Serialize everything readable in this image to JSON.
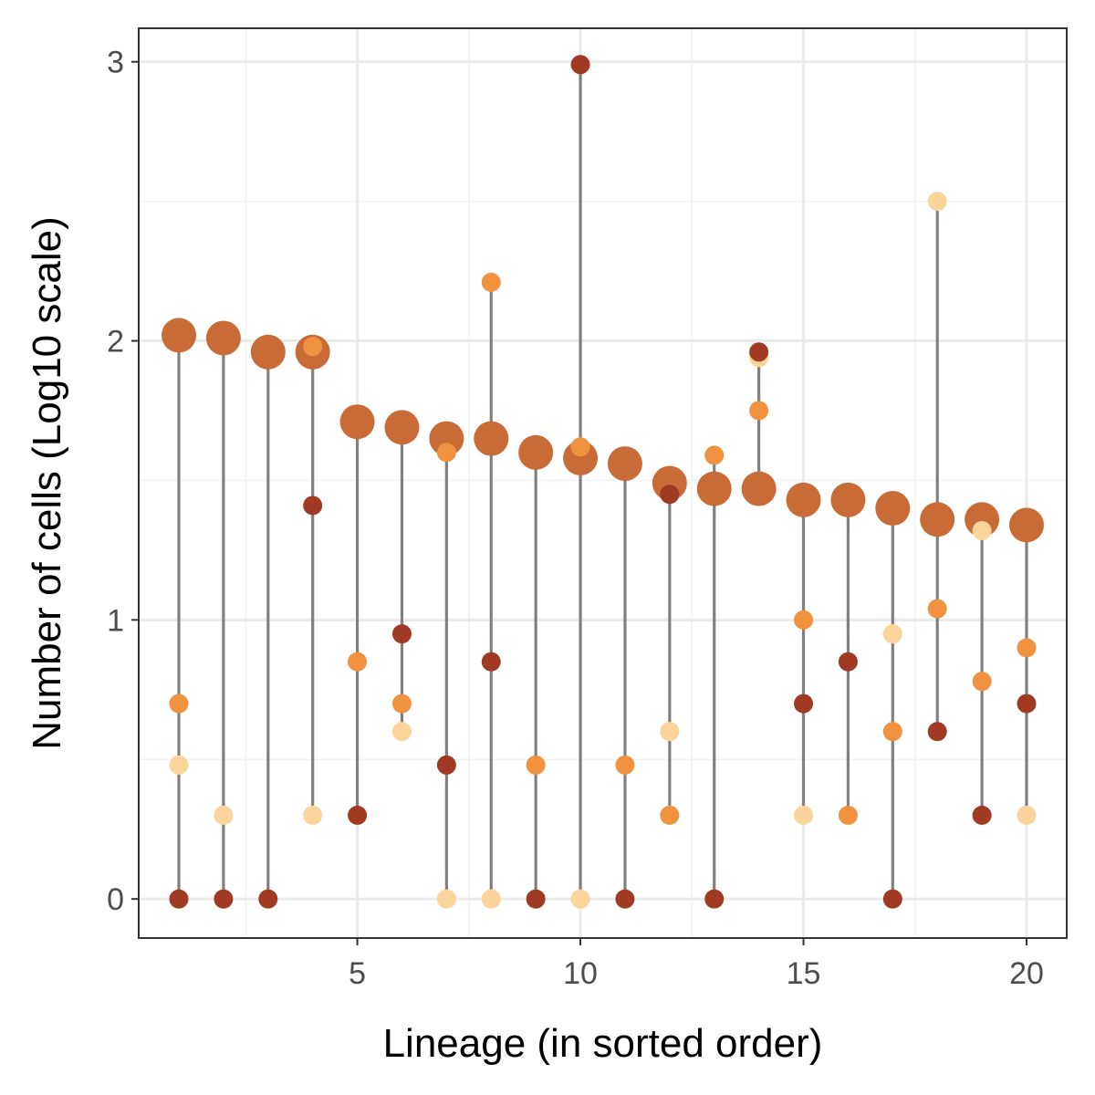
{
  "chart_data": {
    "type": "scatter",
    "xlabel": "Lineage (in sorted order)",
    "ylabel": "Number of cells (Log10 scale)",
    "xlim": [
      0.1,
      20.9
    ],
    "ylim": [
      -0.14,
      3.12
    ],
    "x_ticks": [
      5,
      10,
      15,
      20
    ],
    "y_ticks": [
      0,
      1,
      2,
      3
    ],
    "grid": true,
    "legend": "none",
    "colors": {
      "total": "#C96B36",
      "dark": "#A03A22",
      "medium": "#F0923F",
      "light": "#FAD49B",
      "segment": "#808080",
      "panel_border": "#333333",
      "grid_major": "#EBEBEB",
      "grid_minor": "#F2F2F2"
    },
    "series": [
      {
        "key": "total",
        "x": [
          1,
          2,
          3,
          4,
          5,
          6,
          7,
          8,
          9,
          10,
          11,
          12,
          13,
          14,
          15,
          16,
          17,
          18,
          19,
          20
        ],
        "y": [
          2.02,
          2.01,
          1.96,
          1.96,
          1.71,
          1.69,
          1.65,
          1.65,
          1.6,
          1.58,
          1.56,
          1.49,
          1.47,
          1.47,
          1.43,
          1.43,
          1.4,
          1.36,
          1.36,
          1.34
        ]
      },
      {
        "key": "dark",
        "x": [
          1,
          2,
          3,
          4,
          5,
          6,
          7,
          8,
          9,
          11,
          12,
          13,
          14,
          15,
          16,
          17,
          18,
          19,
          20,
          10
        ],
        "y": [
          0,
          0,
          0,
          1.41,
          0.3,
          0.95,
          0.48,
          0.85,
          0,
          0,
          1.45,
          0,
          1.96,
          0.7,
          0.85,
          0,
          0.6,
          0.3,
          0.7,
          2.99
        ]
      },
      {
        "key": "medium",
        "x": [
          1,
          4,
          5,
          6,
          7,
          8,
          9,
          10,
          11,
          12,
          13,
          14,
          15,
          16,
          17,
          18,
          19,
          20
        ],
        "y": [
          0.7,
          1.98,
          0.85,
          0.7,
          1.6,
          2.21,
          0.48,
          1.62,
          0.48,
          0.3,
          1.59,
          1.75,
          1.0,
          0.3,
          0.6,
          1.04,
          0.78,
          0.9
        ]
      },
      {
        "key": "light",
        "x": [
          1,
          2,
          4,
          6,
          7,
          8,
          10,
          12,
          14,
          15,
          17,
          18,
          19,
          20
        ],
        "y": [
          0.48,
          0.3,
          0.3,
          0.6,
          0,
          0,
          0,
          0.6,
          1.94,
          0.3,
          0.95,
          2.5,
          1.32,
          0.3
        ]
      }
    ]
  }
}
